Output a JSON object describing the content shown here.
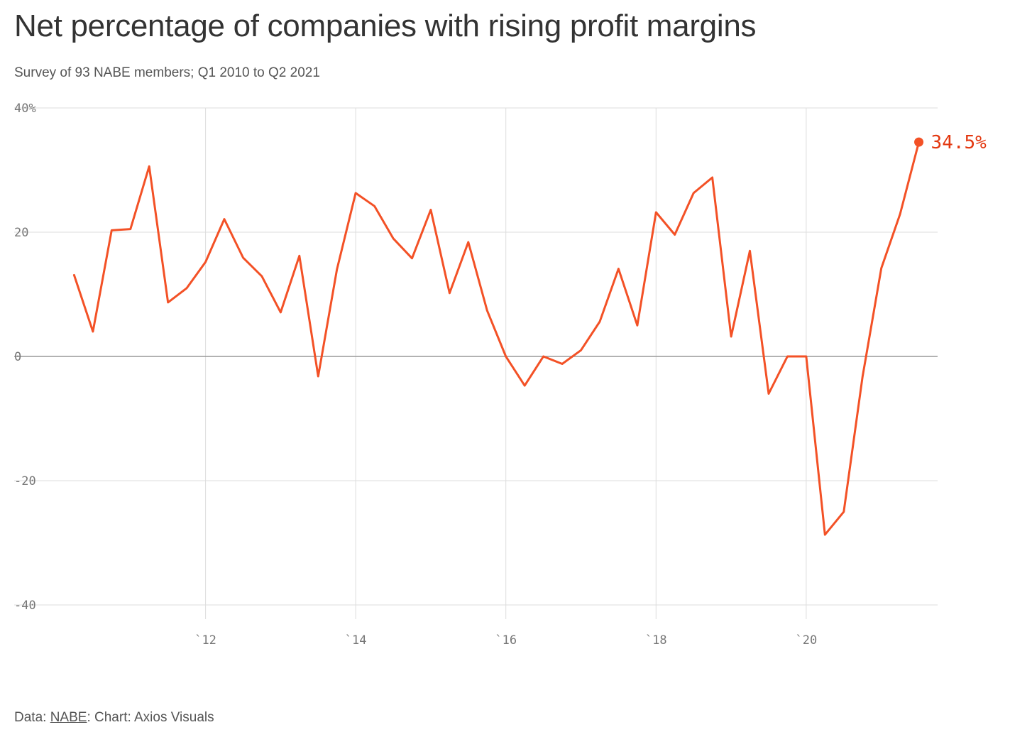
{
  "header": {
    "title": "Net percentage of companies with rising profit margins",
    "subtitle": "Survey of 93 NABE members; Q1 2010 to Q2 2021"
  },
  "footer": {
    "prefix": "Data: ",
    "source": "NABE",
    "suffix": ": Chart: Axios Visuals"
  },
  "colors": {
    "line": "#f35126",
    "end_label": "#e3370f",
    "grid": "#dddddd",
    "zero_line": "#999999"
  },
  "chart_data": {
    "type": "line",
    "title": "Net percentage of companies with rising profit margins",
    "subtitle": "Survey of 93 NABE members; Q1 2010 to Q2 2021",
    "xlabel": "",
    "ylabel": "",
    "ylim": [
      -40,
      40
    ],
    "xlim": [
      2010.0,
      2021.75
    ],
    "y_ticks": [
      {
        "value": 40,
        "label": "40%"
      },
      {
        "value": 20,
        "label": "20"
      },
      {
        "value": 0,
        "label": "0"
      },
      {
        "value": -20,
        "label": "-20"
      },
      {
        "value": -40,
        "label": "-40"
      }
    ],
    "x_ticks": [
      {
        "value": 2012,
        "label": "`12"
      },
      {
        "value": 2014,
        "label": "`14"
      },
      {
        "value": 2016,
        "label": "`16"
      },
      {
        "value": 2018,
        "label": "`18"
      },
      {
        "value": 2020,
        "label": "`20"
      }
    ],
    "grid": true,
    "end_label": "34.5%",
    "x": [
      2010.25,
      2010.5,
      2010.75,
      2011.0,
      2011.25,
      2011.5,
      2011.75,
      2012.0,
      2012.25,
      2012.5,
      2012.75,
      2013.0,
      2013.25,
      2013.5,
      2013.75,
      2014.0,
      2014.25,
      2014.5,
      2014.75,
      2015.0,
      2015.25,
      2015.5,
      2015.75,
      2016.0,
      2016.25,
      2016.5,
      2016.75,
      2017.0,
      2017.25,
      2017.5,
      2017.75,
      2018.0,
      2018.25,
      2018.5,
      2018.75,
      2019.0,
      2019.25,
      2019.5,
      2019.75,
      2020.0,
      2020.25,
      2020.5,
      2020.75,
      2021.0,
      2021.25,
      2021.5
    ],
    "values": [
      13.1,
      4.0,
      20.3,
      20.5,
      30.6,
      8.7,
      11.0,
      15.2,
      22.1,
      15.9,
      12.9,
      7.1,
      16.2,
      -3.2,
      14.0,
      26.3,
      24.2,
      19.0,
      15.8,
      23.6,
      10.2,
      18.4,
      7.4,
      0.0,
      -4.7,
      0.0,
      -1.2,
      1.0,
      5.6,
      14.1,
      5.0,
      23.2,
      19.6,
      26.3,
      28.8,
      3.2,
      17.0,
      -6.0,
      0.0,
      0.0,
      -28.7,
      -25.0,
      -3.3,
      14.2,
      22.9,
      34.5
    ]
  }
}
